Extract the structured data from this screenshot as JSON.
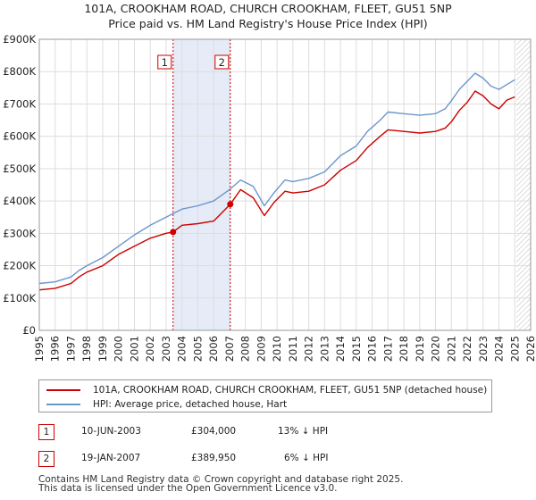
{
  "chart_data": {
    "type": "line",
    "title": "101A, CROOKHAM ROAD, CHURCH CROOKHAM, FLEET, GU51 5NP",
    "subtitle": "Price paid vs. HM Land Registry's House Price Index (HPI)",
    "xlabel": "",
    "ylabel": "",
    "xlim": [
      1995,
      2026
    ],
    "ylim": [
      0,
      900000
    ],
    "grid": true,
    "x_ticks": [
      "1995",
      "1996",
      "1997",
      "1998",
      "1999",
      "2000",
      "2001",
      "2002",
      "2003",
      "2004",
      "2005",
      "2006",
      "2007",
      "2008",
      "2009",
      "2010",
      "2011",
      "2012",
      "2013",
      "2014",
      "2015",
      "2016",
      "2017",
      "2018",
      "2019",
      "2020",
      "2021",
      "2022",
      "2023",
      "2024",
      "2025",
      "2026"
    ],
    "y_ticks": [
      {
        "value": 0,
        "label": "£0"
      },
      {
        "value": 100000,
        "label": "£100K"
      },
      {
        "value": 200000,
        "label": "£200K"
      },
      {
        "value": 300000,
        "label": "£300K"
      },
      {
        "value": 400000,
        "label": "£400K"
      },
      {
        "value": 500000,
        "label": "£500K"
      },
      {
        "value": 600000,
        "label": "£600K"
      },
      {
        "value": 700000,
        "label": "£700K"
      },
      {
        "value": 800000,
        "label": "£800K"
      },
      {
        "value": 900000,
        "label": "£900K"
      }
    ],
    "shaded_span": [
      2003.44,
      2007.05
    ],
    "future_hatch_from": 2025.1,
    "series": [
      {
        "name": "101A, CROOKHAM ROAD, CHURCH CROOKHAM, FLEET, GU51 5NP (detached house)",
        "color": "#cc0000",
        "x": [
          1995,
          1996,
          1997,
          1997.5,
          1998,
          1999,
          2000,
          2001,
          2002,
          2003,
          2003.44,
          2004,
          2005,
          2006,
          2007.05,
          2007.7,
          2008.5,
          2009.2,
          2009.8,
          2010.5,
          2011,
          2012,
          2013,
          2014,
          2015,
          2015.7,
          2016.5,
          2017,
          2018,
          2019,
          2020,
          2020.6,
          2021,
          2021.5,
          2022,
          2022.5,
          2023,
          2023.5,
          2024,
          2024.5,
          2025
        ],
        "values": [
          125000,
          130000,
          145000,
          165000,
          180000,
          200000,
          235000,
          260000,
          285000,
          300000,
          304000,
          325000,
          330000,
          338000,
          389950,
          435000,
          410000,
          355000,
          395000,
          430000,
          425000,
          430000,
          450000,
          495000,
          525000,
          565000,
          600000,
          620000,
          615000,
          610000,
          615000,
          625000,
          645000,
          680000,
          705000,
          740000,
          725000,
          700000,
          685000,
          712000,
          722000
        ]
      },
      {
        "name": "HPI: Average price, detached house, Hart",
        "color": "#6a96cc",
        "x": [
          1995,
          1996,
          1997,
          1997.5,
          1998,
          1999,
          2000,
          2001,
          2002,
          2003,
          2004,
          2005,
          2006,
          2007,
          2007.7,
          2008.5,
          2009.2,
          2009.8,
          2010.5,
          2011,
          2012,
          2013,
          2014,
          2015,
          2015.7,
          2016.5,
          2017,
          2018,
          2019,
          2020,
          2020.6,
          2021,
          2021.5,
          2022,
          2022.5,
          2023,
          2023.5,
          2024,
          2024.5,
          2025
        ],
        "values": [
          145000,
          150000,
          165000,
          185000,
          200000,
          225000,
          260000,
          295000,
          325000,
          350000,
          375000,
          385000,
          400000,
          435000,
          465000,
          445000,
          385000,
          425000,
          465000,
          460000,
          470000,
          490000,
          540000,
          570000,
          615000,
          650000,
          675000,
          670000,
          665000,
          670000,
          685000,
          710000,
          745000,
          770000,
          795000,
          780000,
          755000,
          745000,
          760000,
          775000
        ]
      }
    ],
    "markers": [
      {
        "label": "1",
        "x": 2003.44,
        "value": 304000
      },
      {
        "label": "2",
        "x": 2007.05,
        "value": 389950
      }
    ]
  },
  "legend": {
    "property_label": "101A, CROOKHAM ROAD, CHURCH CROOKHAM, FLEET, GU51 5NP (detached house)",
    "hpi_label": "HPI: Average price, detached house, Hart"
  },
  "transactions": [
    {
      "num": "1",
      "date": "10-JUN-2003",
      "price": "£304,000",
      "hpi": "13% ↓ HPI"
    },
    {
      "num": "2",
      "date": "19-JAN-2007",
      "price": "£389,950",
      "hpi": "6% ↓ HPI"
    }
  ],
  "footer": {
    "line1": "Contains HM Land Registry data © Crown copyright and database right 2025.",
    "line2": "This data is licensed under the Open Government Licence v3.0."
  }
}
